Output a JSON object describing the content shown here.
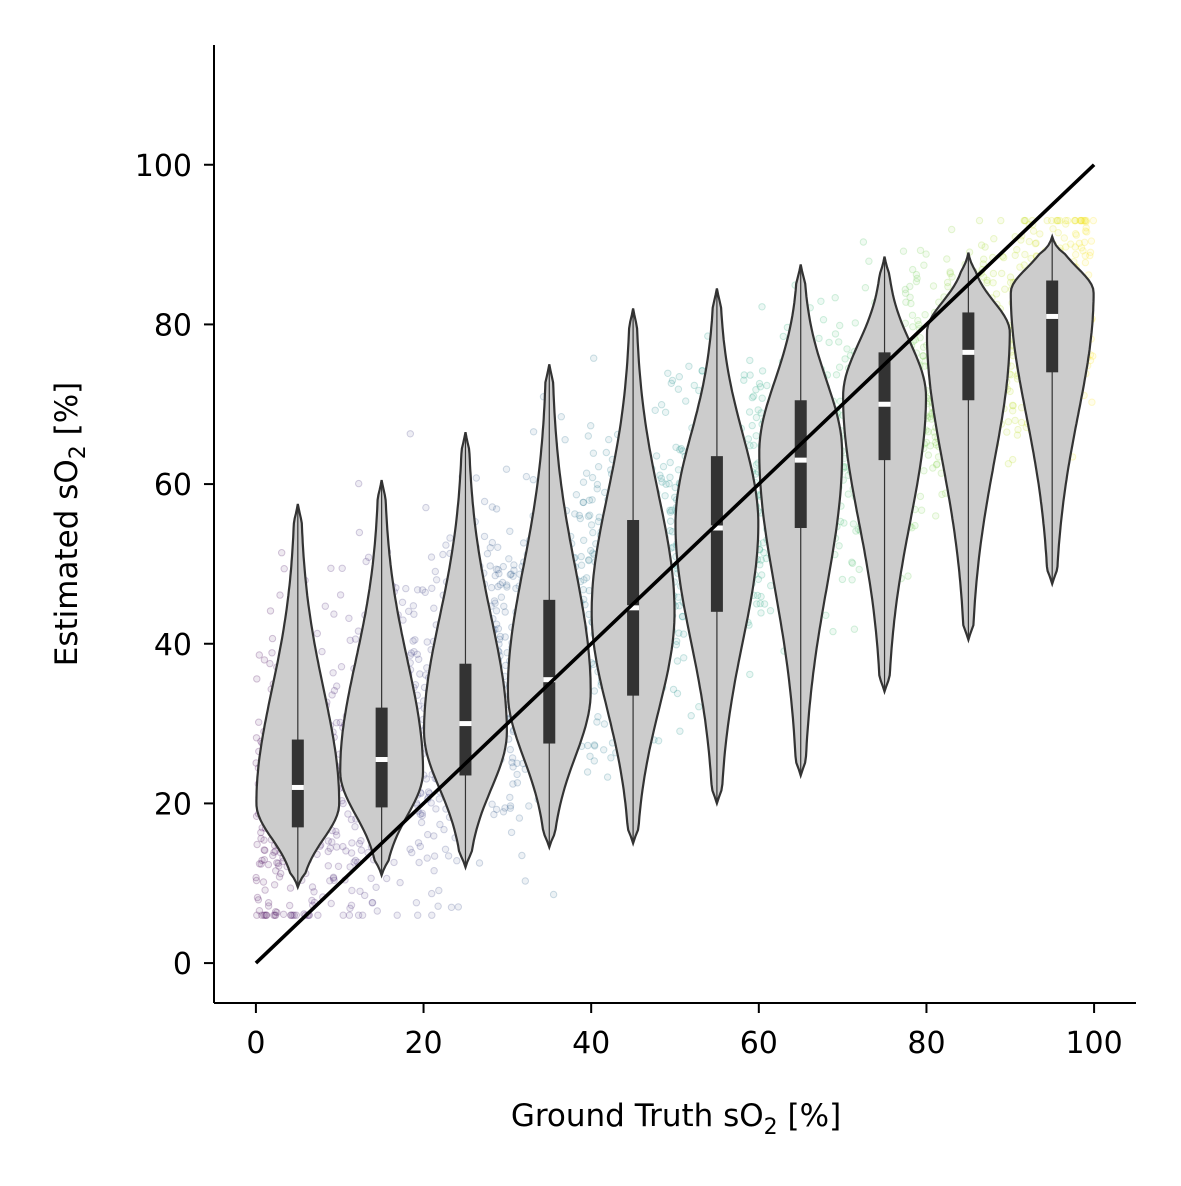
{
  "chart_data": {
    "type": "violin",
    "xlabel_main": "Ground Truth sO",
    "xlabel_sub": "2",
    "xlabel_tail": " [%]",
    "ylabel_main": "Estimated sO",
    "ylabel_sub": "2",
    "ylabel_tail": " [%]",
    "xlim": [
      -5,
      105
    ],
    "ylim": [
      -5,
      115
    ],
    "x_ticks": [
      0,
      20,
      40,
      60,
      80,
      100
    ],
    "x_tick_labels": [
      "0",
      "20",
      "40",
      "60",
      "80",
      "100"
    ],
    "y_ticks": [
      0,
      20,
      40,
      60,
      80,
      100
    ],
    "y_tick_labels": [
      "0",
      "20",
      "40",
      "60",
      "80",
      "100"
    ],
    "identity_line": {
      "from": [
        0,
        0
      ],
      "to": [
        100,
        100
      ],
      "color": "#000000"
    },
    "scatter_colormap": "viridis",
    "scatter_alpha": 0.15,
    "violin_fill": "#cccccc",
    "violin_edge": "#333333",
    "violins": [
      {
        "x": 5,
        "min": 9.5,
        "q1": 17,
        "median": 22,
        "q3": 28,
        "max": 57.5,
        "mode": 20
      },
      {
        "x": 15,
        "min": 11,
        "q1": 19.5,
        "median": 25.5,
        "q3": 32,
        "max": 60.5,
        "mode": 24
      },
      {
        "x": 25,
        "min": 12,
        "q1": 23.5,
        "median": 30,
        "q3": 37.5,
        "max": 66.5,
        "mode": 29
      },
      {
        "x": 35,
        "min": 14.5,
        "q1": 27.5,
        "median": 35.5,
        "q3": 45.5,
        "max": 75,
        "mode": 34
      },
      {
        "x": 45,
        "min": 15,
        "q1": 33.5,
        "median": 44.5,
        "q3": 55.5,
        "max": 82,
        "mode": 44
      },
      {
        "x": 55,
        "min": 20,
        "q1": 44,
        "median": 54.5,
        "q3": 63.5,
        "max": 84.5,
        "mode": 55
      },
      {
        "x": 65,
        "min": 23.5,
        "q1": 54.5,
        "median": 63,
        "q3": 70.5,
        "max": 87.5,
        "mode": 64
      },
      {
        "x": 75,
        "min": 34,
        "q1": 63,
        "median": 70,
        "q3": 76.5,
        "max": 88.5,
        "mode": 71
      },
      {
        "x": 85,
        "min": 40.5,
        "q1": 70.5,
        "median": 76.5,
        "q3": 81.5,
        "max": 89,
        "mode": 79
      },
      {
        "x": 95,
        "min": 47.5,
        "q1": 74,
        "median": 81,
        "q3": 85.5,
        "max": 91,
        "mode": 84
      }
    ]
  }
}
